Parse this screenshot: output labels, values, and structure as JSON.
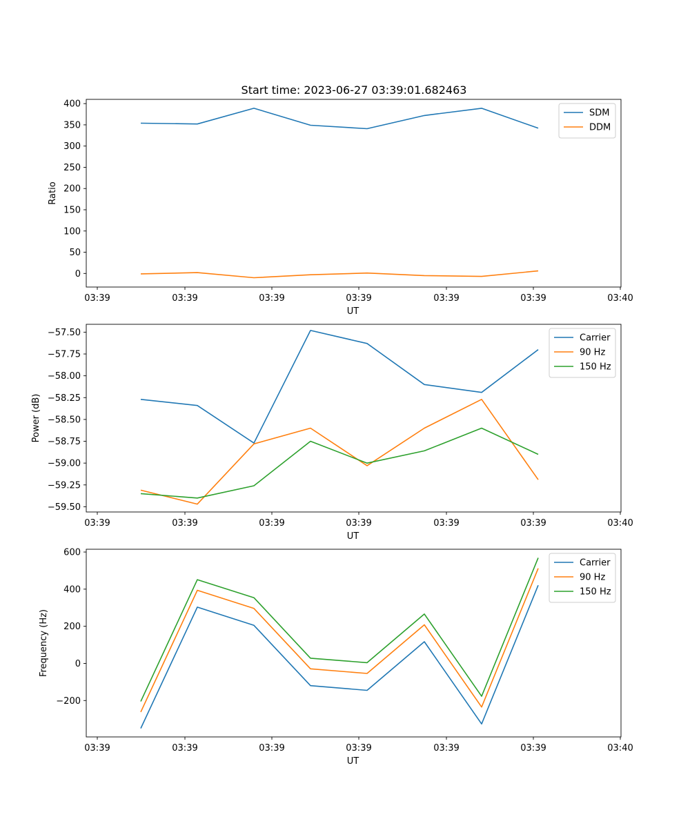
{
  "figure_title": "Start time: 2023-06-27 03:39:01.682463",
  "x_tick_labels": [
    "03:39",
    "03:39",
    "03:39",
    "03:39",
    "03:39",
    "03:39",
    "03:39",
    "03:40"
  ],
  "chart_data": [
    {
      "type": "line",
      "title": "Start time: 2023-06-27 03:39:01.682463",
      "xlabel": "UT",
      "ylabel": "Ratio",
      "ylim": [
        -32,
        410
      ],
      "yticks": [
        0,
        50,
        100,
        150,
        200,
        250,
        300,
        350,
        400
      ],
      "grid": false,
      "legend_position": "top-right",
      "series": [
        {
          "name": "SDM",
          "color": "#1f77b4",
          "values": [
            354,
            352,
            389,
            349,
            341,
            372,
            389,
            342
          ]
        },
        {
          "name": "DDM",
          "color": "#ff7f0e",
          "values": [
            -1,
            2,
            -10,
            -3,
            1,
            -5,
            -7,
            6
          ]
        }
      ]
    },
    {
      "type": "line",
      "title": "",
      "xlabel": "UT",
      "ylabel": "Power (dB)",
      "ylim": [
        -59.56,
        -57.41
      ],
      "yticks": [
        -59.5,
        -59.25,
        -59.0,
        -58.75,
        -58.5,
        -58.25,
        -58.0,
        -57.75,
        -57.5
      ],
      "ytick_labels": [
        "−59.50",
        "−59.25",
        "−59.00",
        "−58.75",
        "−58.50",
        "−58.25",
        "−58.00",
        "−57.75",
        "−57.50"
      ],
      "grid": false,
      "legend_position": "top-right",
      "series": [
        {
          "name": "Carrier",
          "color": "#1f77b4",
          "values": [
            -58.27,
            -58.34,
            -58.77,
            -57.48,
            -57.63,
            -58.1,
            -58.19,
            -57.7
          ]
        },
        {
          "name": "90 Hz",
          "color": "#ff7f0e",
          "values": [
            -59.31,
            -59.47,
            -58.78,
            -58.6,
            -59.03,
            -58.6,
            -58.27,
            -59.19
          ]
        },
        {
          "name": "150 Hz",
          "color": "#2ca02c",
          "values": [
            -59.35,
            -59.4,
            -59.26,
            -58.75,
            -59.0,
            -58.86,
            -58.6,
            -58.9
          ]
        }
      ]
    },
    {
      "type": "line",
      "title": "",
      "xlabel": "UT",
      "ylabel": "Frequency (Hz)",
      "ylim": [
        -396,
        615
      ],
      "yticks": [
        -200,
        0,
        200,
        400,
        600
      ],
      "ytick_labels": [
        "−200",
        "0",
        "200",
        "400",
        "600"
      ],
      "grid": false,
      "legend_position": "top-right",
      "series": [
        {
          "name": "Carrier",
          "color": "#1f77b4",
          "values": [
            -350,
            303,
            205,
            -120,
            -145,
            117,
            -326,
            421
          ]
        },
        {
          "name": "90 Hz",
          "color": "#ff7f0e",
          "values": [
            -262,
            394,
            296,
            -29,
            -54,
            208,
            -235,
            512
          ]
        },
        {
          "name": "150 Hz",
          "color": "#2ca02c",
          "values": [
            -205,
            451,
            354,
            28,
            4,
            266,
            -177,
            569
          ]
        }
      ]
    }
  ]
}
